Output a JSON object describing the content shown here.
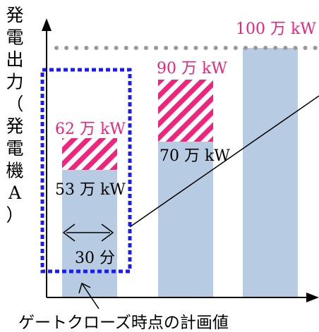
{
  "y_axis_label": "発電出力（発電機A）",
  "labels": {
    "max": "100 万 kW",
    "upper_hatched": "90 万 kW",
    "middle_bar": "70 万 kW",
    "lower_hatched": "62 万 kW",
    "left_bar": "53 万 kW",
    "duration": "30 分",
    "caption": "ゲートクローズ時点の計画値"
  },
  "colors": {
    "bar": "#b7cce2",
    "hatch": "#f0247c",
    "label_pink": "#e8247c",
    "dashed_box": "#1a1aff",
    "dotted_line": "#999999",
    "axis": "#000000"
  }
}
